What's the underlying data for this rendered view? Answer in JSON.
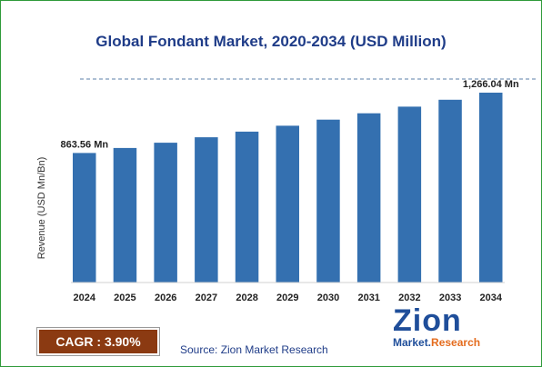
{
  "chart_data": {
    "type": "bar",
    "title": "Global Fondant Market, 2020-2034 (USD Million)",
    "ylabel": "Revenue (USD Mn/Bn)",
    "xlabel": "",
    "categories": [
      "2024",
      "2025",
      "2026",
      "2027",
      "2028",
      "2029",
      "2030",
      "2031",
      "2032",
      "2033",
      "2034"
    ],
    "values": [
      863.56,
      897.24,
      932.23,
      968.59,
      1006.36,
      1045.61,
      1086.39,
      1128.76,
      1172.78,
      1218.52,
      1266.04
    ],
    "data_labels": [
      {
        "index": 0,
        "text": "863.56 Mn"
      },
      {
        "index": 10,
        "text": "1,266.04 Mn"
      }
    ],
    "ylim": [
      0,
      1400
    ],
    "grid": false,
    "bar_color": "#3470b0"
  },
  "cagr": {
    "text": "CAGR : 3.90%"
  },
  "source": {
    "text": "Source: Zion Market Research"
  },
  "logo": {
    "top": "Zion",
    "bottom_a": "Market.",
    "bottom_b": "Research"
  }
}
